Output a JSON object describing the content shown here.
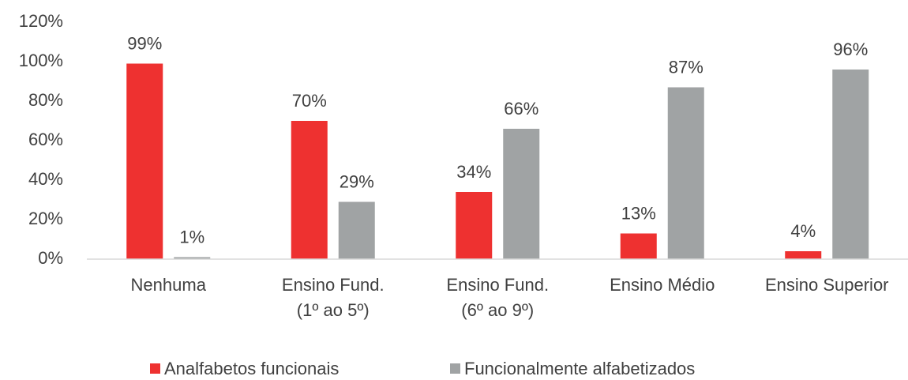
{
  "chart_data": {
    "type": "bar",
    "categories": [
      [
        "Nenhuma"
      ],
      [
        "Ensino Fund.",
        "(1º ao 5º)"
      ],
      [
        "Ensino Fund.",
        "(6º ao 9º)"
      ],
      [
        "Ensino Médio"
      ],
      [
        "Ensino Superior"
      ]
    ],
    "series": [
      {
        "name": "Analfabetos funcionais",
        "color": "#ee3130",
        "values": [
          99,
          70,
          34,
          13,
          4
        ],
        "value_labels": [
          "99%",
          "70%",
          "34%",
          "13%",
          "4%"
        ]
      },
      {
        "name": "Funcionalmente alfabetizados",
        "color": "#a0a3a4",
        "values": [
          1,
          29,
          66,
          87,
          96
        ],
        "value_labels": [
          "1%",
          "29%",
          "66%",
          "87%",
          "96%"
        ]
      }
    ],
    "ylim": [
      0,
      120
    ],
    "yticks": [
      {
        "value": 0,
        "label": "0%"
      },
      {
        "value": 20,
        "label": "20%"
      },
      {
        "value": 40,
        "label": "40%"
      },
      {
        "value": 60,
        "label": "60%"
      },
      {
        "value": 80,
        "label": "80%"
      },
      {
        "value": 100,
        "label": "100%"
      },
      {
        "value": 120,
        "label": "120%"
      }
    ],
    "grid": false,
    "legend": "bottom"
  }
}
